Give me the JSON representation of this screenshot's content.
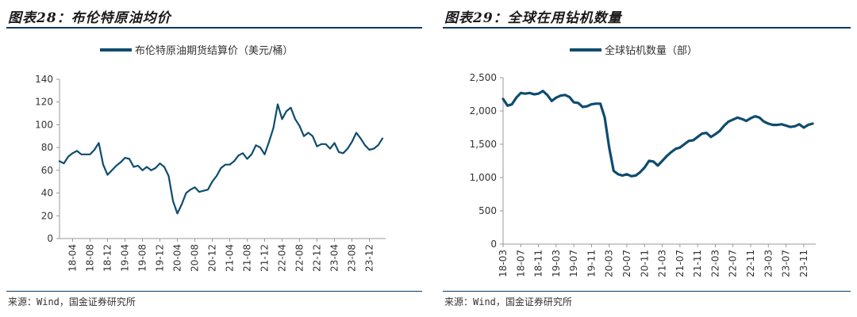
{
  "chart_data": [
    {
      "type": "line",
      "figure_title": "图表28：布伦特原油均价",
      "source": "来源：Wind，国金证券研究所",
      "legend": "布伦特原油期货结算价（美元/桶）",
      "color": "#0f4c6e",
      "ylim": [
        0,
        140
      ],
      "yticks": [
        0,
        20,
        40,
        60,
        80,
        100,
        120,
        140
      ],
      "xticks": [
        "18-04",
        "18-08",
        "18-12",
        "19-04",
        "19-08",
        "19-12",
        "20-04",
        "20-08",
        "20-12",
        "21-04",
        "21-08",
        "21-12",
        "22-04",
        "22-08",
        "22-12",
        "23-04",
        "23-08",
        "23-12"
      ],
      "x": [
        "18-01",
        "18-02",
        "18-03",
        "18-04",
        "18-05",
        "18-06",
        "18-07",
        "18-08",
        "18-09",
        "18-10",
        "18-11",
        "18-12",
        "19-01",
        "19-02",
        "19-03",
        "19-04",
        "19-05",
        "19-06",
        "19-07",
        "19-08",
        "19-09",
        "19-10",
        "19-11",
        "19-12",
        "20-01",
        "20-02",
        "20-03",
        "20-04",
        "20-05",
        "20-06",
        "20-07",
        "20-08",
        "20-09",
        "20-10",
        "20-11",
        "20-12",
        "21-01",
        "21-02",
        "21-03",
        "21-04",
        "21-05",
        "21-06",
        "21-07",
        "21-08",
        "21-09",
        "21-10",
        "21-11",
        "21-12",
        "22-01",
        "22-02",
        "22-03",
        "22-04",
        "22-05",
        "22-06",
        "22-07",
        "22-08",
        "22-09",
        "22-10",
        "22-11",
        "22-12",
        "23-01",
        "23-02",
        "23-03",
        "23-04",
        "23-05",
        "23-06",
        "23-07",
        "23-08",
        "23-09",
        "23-10",
        "23-11",
        "23-12",
        "24-01",
        "24-02",
        "24-03"
      ],
      "values": [
        68,
        66,
        72,
        75,
        77,
        74,
        74,
        74,
        78,
        84,
        65,
        56,
        60,
        64,
        67,
        71,
        70,
        63,
        64,
        60,
        63,
        60,
        62,
        66,
        63,
        55,
        33,
        22,
        30,
        40,
        43,
        45,
        41,
        42,
        43,
        50,
        55,
        62,
        65,
        65,
        68,
        73,
        75,
        70,
        74,
        82,
        80,
        74,
        85,
        97,
        118,
        105,
        112,
        115,
        105,
        99,
        90,
        93,
        90,
        81,
        83,
        83,
        79,
        84,
        76,
        75,
        79,
        85,
        93,
        88,
        82,
        78,
        79,
        82,
        88
      ]
    },
    {
      "type": "line",
      "figure_title": "图表29：全球在用钻机数量",
      "source": "来源：Wind，国金证券研究所",
      "legend": "全球钻机数量（部）",
      "color": "#0f4c6e",
      "ylim": [
        0,
        2500
      ],
      "yticks": [
        "0",
        "500",
        "1,000",
        "1,500",
        "2,000",
        "2,500"
      ],
      "ytick_values": [
        0,
        500,
        1000,
        1500,
        2000,
        2500
      ],
      "xticks": [
        "18-03",
        "18-07",
        "18-11",
        "19-03",
        "19-07",
        "19-11",
        "20-03",
        "20-07",
        "20-11",
        "21-03",
        "21-07",
        "21-11",
        "22-03",
        "22-07",
        "22-11",
        "23-03",
        "23-07",
        "23-11"
      ],
      "x": [
        "18-03",
        "18-04",
        "18-05",
        "18-06",
        "18-07",
        "18-08",
        "18-09",
        "18-10",
        "18-11",
        "18-12",
        "19-01",
        "19-02",
        "19-03",
        "19-04",
        "19-05",
        "19-06",
        "19-07",
        "19-08",
        "19-09",
        "19-10",
        "19-11",
        "19-12",
        "20-01",
        "20-02",
        "20-03",
        "20-04",
        "20-05",
        "20-06",
        "20-07",
        "20-08",
        "20-09",
        "20-10",
        "20-11",
        "20-12",
        "21-01",
        "21-02",
        "21-03",
        "21-04",
        "21-05",
        "21-06",
        "21-07",
        "21-08",
        "21-09",
        "21-10",
        "21-11",
        "21-12",
        "22-01",
        "22-02",
        "22-03",
        "22-04",
        "22-05",
        "22-06",
        "22-07",
        "22-08",
        "22-09",
        "22-10",
        "22-11",
        "22-12",
        "23-01",
        "23-02",
        "23-03",
        "23-04",
        "23-05",
        "23-06",
        "23-07",
        "23-08",
        "23-09",
        "23-10",
        "23-11",
        "23-12",
        "24-01"
      ],
      "values": [
        2180,
        2080,
        2100,
        2200,
        2270,
        2260,
        2270,
        2250,
        2260,
        2300,
        2240,
        2150,
        2200,
        2230,
        2240,
        2210,
        2130,
        2120,
        2060,
        2070,
        2100,
        2110,
        2110,
        1900,
        1450,
        1100,
        1050,
        1030,
        1050,
        1020,
        1030,
        1080,
        1150,
        1250,
        1240,
        1180,
        1250,
        1320,
        1380,
        1430,
        1450,
        1500,
        1550,
        1560,
        1610,
        1660,
        1670,
        1610,
        1650,
        1700,
        1780,
        1840,
        1870,
        1900,
        1880,
        1850,
        1890,
        1920,
        1900,
        1840,
        1810,
        1790,
        1790,
        1800,
        1780,
        1760,
        1770,
        1800,
        1750,
        1790,
        1810
      ]
    }
  ]
}
